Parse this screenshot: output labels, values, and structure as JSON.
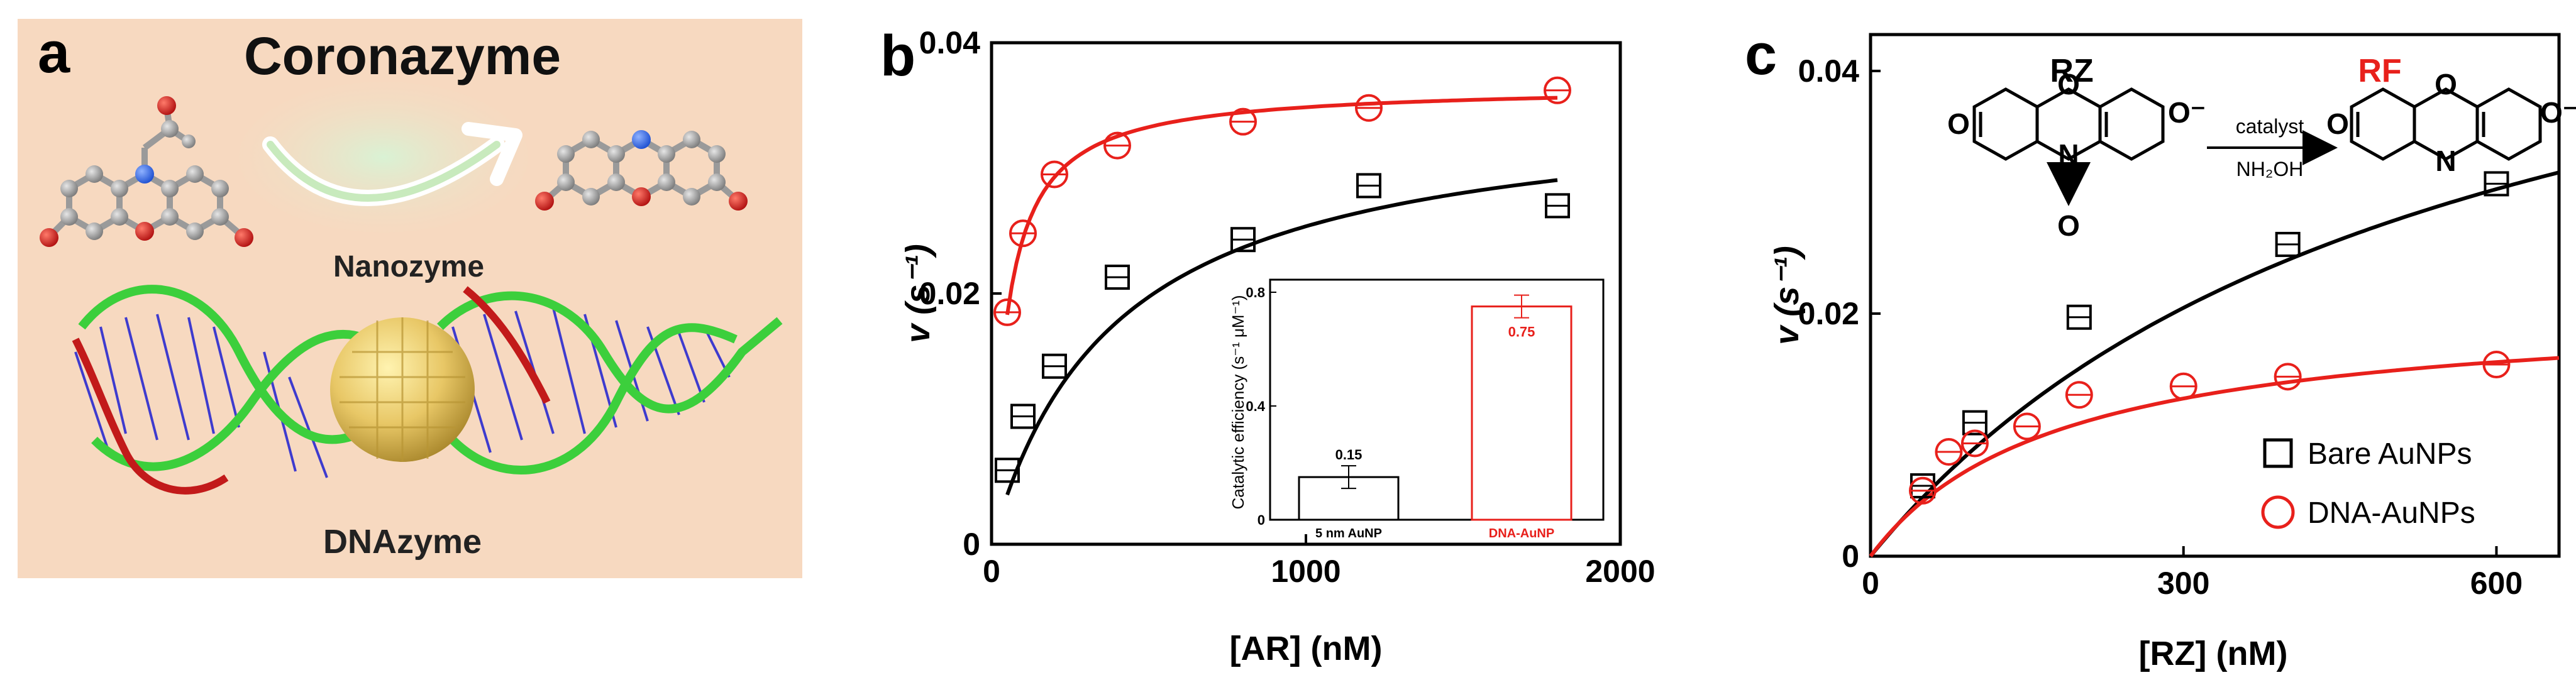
{
  "panel_a": {
    "letter": "a",
    "title": "Coronazyme",
    "nanozyme_label": "Nanozyme",
    "dnazyme_label": "DNAzyme",
    "colors": {
      "background": "#f7d9c0",
      "arrow_glow": "#9fd49a",
      "dna_green": "#3ccf3c",
      "dna_red": "#c21a1a",
      "dna_blue": "#2a2ad0",
      "particle_gold": "#e8c766"
    }
  },
  "chart_data": [
    {
      "panel": "b",
      "type": "scatter",
      "xlabel": "[AR] (nM)",
      "ylabel": "v (s⁻¹)",
      "xlim": [
        0,
        2000
      ],
      "ylim": [
        0,
        0.04
      ],
      "xticks": [
        0,
        1000,
        2000
      ],
      "yticks": [
        0,
        0.02,
        0.04
      ],
      "ytick_labels": [
        "0",
        "0.02",
        "0.04"
      ],
      "legend": "none",
      "series": [
        {
          "marker": "square",
          "color": "#000000",
          "points": [
            [
              50,
              0.0059
            ],
            [
              100,
              0.0102
            ],
            [
              200,
              0.0142
            ],
            [
              400,
              0.0213
            ],
            [
              800,
              0.0243
            ],
            [
              1200,
              0.0286
            ],
            [
              1800,
              0.027
            ]
          ],
          "fit": {
            "model": "michaelis-menten",
            "vmax": 0.0355,
            "km": 400
          }
        },
        {
          "marker": "circle",
          "color": "#e8201b",
          "points": [
            [
              50,
              0.0185
            ],
            [
              100,
              0.0248
            ],
            [
              200,
              0.0295
            ],
            [
              400,
              0.0318
            ],
            [
              800,
              0.0337
            ],
            [
              1200,
              0.0348
            ],
            [
              1800,
              0.0362
            ]
          ],
          "fit": {
            "model": "michaelis-menten",
            "vmax": 0.0366,
            "km": 50
          }
        }
      ],
      "inset": {
        "type": "bar",
        "ylabel": "Catalytic efficiency (s⁻¹ μM⁻¹)",
        "ylim": [
          0,
          0.8
        ],
        "yticks": [
          0,
          0.4,
          0.8
        ],
        "ytick_labels": [
          "0",
          "0.4",
          "0.8"
        ],
        "categories": [
          "5 nm AuNP",
          "DNA-AuNP"
        ],
        "values": [
          0.15,
          0.75
        ],
        "value_labels": [
          "0.15",
          "0.75"
        ],
        "colors": [
          "#000000",
          "#e8201b"
        ]
      }
    },
    {
      "panel": "c",
      "type": "scatter",
      "xlabel": "[RZ] (nM)",
      "ylabel": "v (s⁻¹)",
      "xlim": [
        0,
        660
      ],
      "ylim": [
        0,
        0.043
      ],
      "xticks": [
        0,
        300,
        600
      ],
      "yticks": [
        0,
        0.02,
        0.04
      ],
      "ytick_labels": [
        "0",
        "0.02",
        "0.04"
      ],
      "legend": "bottom-right",
      "series": [
        {
          "name": "Bare AuNPs",
          "marker": "square",
          "color": "#000000",
          "points": [
            [
              50,
              0.0058
            ],
            [
              100,
              0.011
            ],
            [
              200,
              0.0197
            ],
            [
              400,
              0.0257
            ],
            [
              600,
              0.0307
            ]
          ],
          "fit": {
            "model": "michaelis-menten",
            "vmax": 0.058,
            "km": 550
          }
        },
        {
          "name": "DNA-AuNPs",
          "marker": "circle",
          "color": "#e8201b",
          "points": [
            [
              50,
              0.0054
            ],
            [
              75,
              0.0086
            ],
            [
              100,
              0.0093
            ],
            [
              150,
              0.0107
            ],
            [
              200,
              0.0133
            ],
            [
              300,
              0.014
            ],
            [
              400,
              0.0148
            ],
            [
              600,
              0.0158
            ]
          ],
          "fit": {
            "model": "michaelis-menten",
            "vmax": 0.0208,
            "km": 180
          }
        }
      ],
      "reaction": {
        "reactant": "RZ",
        "product": "RF",
        "above_arrow": "catalyst",
        "below_arrow": "NH₂OH",
        "colors": {
          "reactant": "#000000",
          "product": "#e8201b"
        }
      }
    }
  ]
}
